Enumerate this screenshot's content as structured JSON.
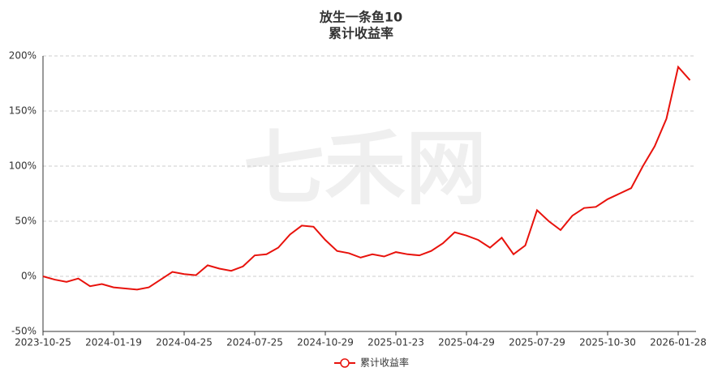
{
  "chart_data": {
    "type": "line",
    "title": "放生一条鱼10",
    "subtitle": "累计收益率",
    "watermark": "七禾网",
    "x": [
      "2023-10-25",
      "2023-11-08",
      "2023-11-22",
      "2023-12-06",
      "2023-12-20",
      "2024-01-05",
      "2024-01-19",
      "2024-02-02",
      "2024-02-23",
      "2024-03-08",
      "2024-03-22",
      "2024-04-10",
      "2024-04-25",
      "2024-05-13",
      "2024-05-27",
      "2024-06-07",
      "2024-06-21",
      "2024-07-05",
      "2024-07-25",
      "2024-08-08",
      "2024-08-22",
      "2024-09-05",
      "2024-09-20",
      "2024-10-11",
      "2024-10-29",
      "2024-11-12",
      "2024-11-26",
      "2024-12-10",
      "2024-12-24",
      "2025-01-08",
      "2025-01-23",
      "2025-02-13",
      "2025-02-27",
      "2025-03-13",
      "2025-03-27",
      "2025-04-10",
      "2025-04-29",
      "2025-05-15",
      "2025-05-29",
      "2025-06-13",
      "2025-06-27",
      "2025-07-11",
      "2025-07-29",
      "2025-08-12",
      "2025-08-26",
      "2025-09-09",
      "2025-09-23",
      "2025-10-15",
      "2025-10-30",
      "2025-11-13",
      "2025-11-27",
      "2025-12-11",
      "2025-12-25",
      "2026-01-13",
      "2026-01-28",
      "2026-02-11"
    ],
    "series": [
      {
        "name": "累计收益率",
        "color": "#e8120c",
        "values": [
          0,
          -3,
          -5,
          -2,
          -9,
          -7,
          -10,
          -11,
          -12,
          -10,
          -3,
          4,
          2,
          1,
          10,
          7,
          5,
          9,
          19,
          20,
          26,
          38,
          46,
          45,
          33,
          23,
          21,
          17,
          20,
          18,
          22,
          20,
          19,
          23,
          30,
          40,
          37,
          33,
          26,
          35,
          20,
          28,
          60,
          50,
          42,
          55,
          62,
          63,
          70,
          75,
          80,
          100,
          118,
          143,
          190,
          178
        ]
      }
    ],
    "ylim": [
      -50,
      200
    ],
    "yticks": [
      {
        "value": -50,
        "label": "-50%"
      },
      {
        "value": 0,
        "label": "0%"
      },
      {
        "value": 50,
        "label": "50%"
      },
      {
        "value": 100,
        "label": "100%"
      },
      {
        "value": 150,
        "label": "150%"
      },
      {
        "value": 200,
        "label": "200%"
      }
    ],
    "xticks": [
      "2023-10-25",
      "2024-01-19",
      "2024-04-25",
      "2024-07-25",
      "2024-10-29",
      "2025-01-23",
      "2025-04-29",
      "2025-07-29",
      "2025-10-30",
      "2026-01-28"
    ],
    "grid": true
  }
}
